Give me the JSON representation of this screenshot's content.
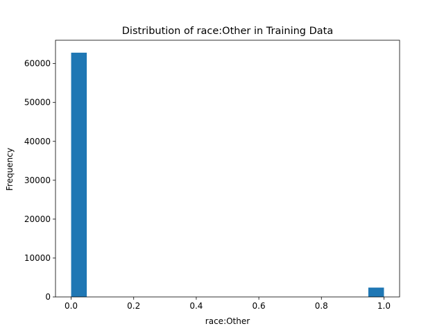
{
  "chart_data": {
    "type": "bar",
    "title": "Distribution of race:Other in Training Data",
    "xlabel": "race:Other",
    "ylabel": "Frequency",
    "xlim": [
      -0.05,
      1.05
    ],
    "ylim": [
      0,
      66000
    ],
    "xticks": [
      0.0,
      0.2,
      0.4,
      0.6,
      0.8,
      1.0
    ],
    "xtick_labels": [
      "0.0",
      "0.2",
      "0.4",
      "0.6",
      "0.8",
      "1.0"
    ],
    "yticks": [
      0,
      10000,
      20000,
      30000,
      40000,
      50000,
      60000
    ],
    "ytick_labels": [
      "0",
      "10000",
      "20000",
      "30000",
      "40000",
      "50000",
      "60000"
    ],
    "bins": [
      {
        "x0": 0.0,
        "x1": 0.05,
        "value": 62800
      },
      {
        "x0": 0.95,
        "x1": 1.0,
        "value": 2400
      }
    ],
    "color": "#1f77b4",
    "grid": false,
    "legend": false
  }
}
